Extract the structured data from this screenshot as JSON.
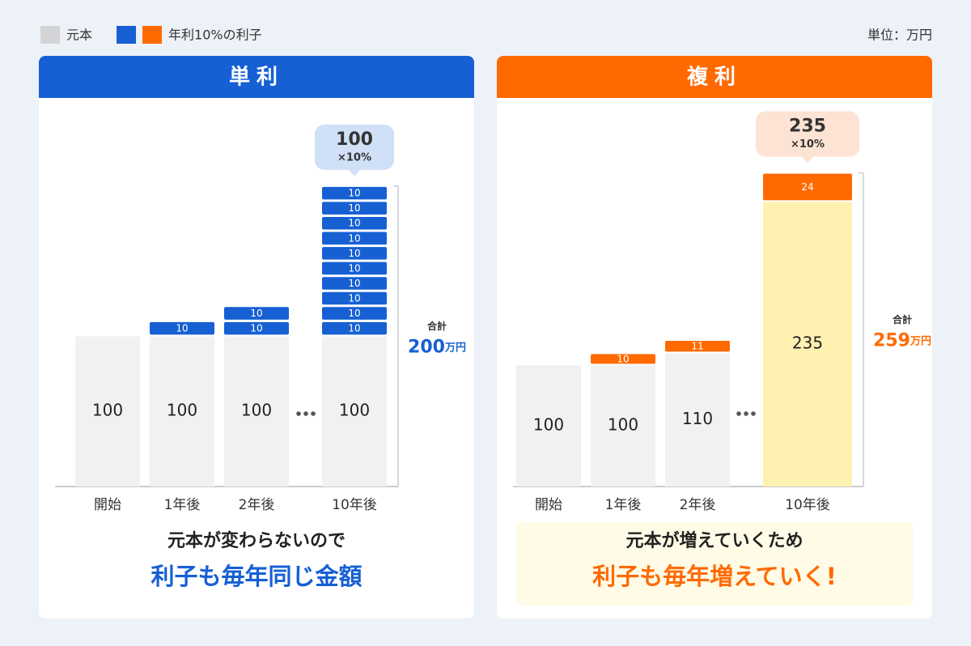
{
  "legend": [
    {
      "label": "元本",
      "colors": [
        "#d4d4d6"
      ]
    },
    {
      "label": "年利10%の利子",
      "colors": [
        "#1660d4",
        "#ff6a00"
      ]
    }
  ],
  "unit": "単位：万円",
  "chart_data": [
    {
      "type": "bar",
      "title": "単利",
      "color": "#1660d4",
      "categories": [
        "開始",
        "1年後",
        "2年後",
        "10年後"
      ],
      "principal": [
        100,
        100,
        100,
        100
      ],
      "principal_colors": [
        "#f0f1f3",
        "#f0f1f3",
        "#f0f1f3",
        "#f0f1f3"
      ],
      "interest": [
        [],
        [
          10
        ],
        [
          10,
          10
        ],
        [
          10,
          10,
          10,
          10,
          10,
          10,
          10,
          10,
          10,
          10
        ]
      ],
      "ylim": [
        0,
        208
      ],
      "callout": {
        "value": 100,
        "label": "×10%",
        "color": "#cfe0f7"
      },
      "total_label": "合計",
      "total": 200,
      "total_unit": "万円",
      "caption": [
        "元本が変わらないので",
        "利子も毎年同じ金額"
      ]
    },
    {
      "type": "bar",
      "title": "複利",
      "color": "#ff6a00",
      "categories": [
        "開始",
        "1年後",
        "2年後",
        "10年後"
      ],
      "principal": [
        100,
        100,
        110,
        235
      ],
      "principal_colors": [
        "#f0f1f3",
        "#f0f1f3",
        "#f0f1f3",
        "#fff2b0"
      ],
      "interest": [
        [],
        [
          10
        ],
        [
          11
        ],
        [
          24
        ]
      ],
      "ylim": [
        0,
        258
      ],
      "callout": {
        "value": 235,
        "label": "×10%",
        "color": "#fde3d3"
      },
      "total_label": "合計",
      "total": 259,
      "total_unit": "万円",
      "caption": [
        "元本が増えていくため",
        "利子も毎年増えていく!"
      ],
      "caption_background": "#fffbe6"
    }
  ]
}
